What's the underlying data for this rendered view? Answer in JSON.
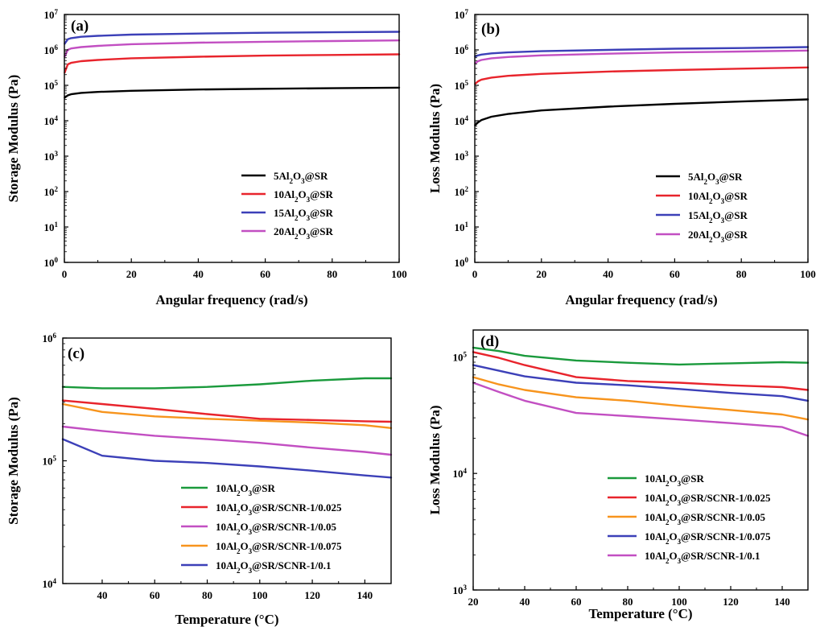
{
  "chart_data": [
    {
      "panel": "(a)",
      "type": "line",
      "xlabel": "Angular frequency (rad/s)",
      "ylabel": "Storage Modulus (Pa)",
      "xlim": [
        0,
        100
      ],
      "ylim": [
        1,
        10000000
      ],
      "yscale": "log",
      "xticks": [
        "0",
        "20",
        "40",
        "60",
        "80",
        "100"
      ],
      "yticks": [
        "10^0",
        "10^1",
        "10^2",
        "10^3",
        "10^4",
        "10^5",
        "10^6",
        "10^7"
      ],
      "legend_position": "lower-right",
      "x": [
        0.1,
        1,
        2,
        5,
        10,
        20,
        40,
        60,
        80,
        100
      ],
      "series": [
        {
          "name": "5Al2O3@SR",
          "color": "#000000",
          "values": [
            45000,
            52000,
            56000,
            61000,
            65000,
            70000,
            76000,
            80000,
            83000,
            86000
          ]
        },
        {
          "name": "10Al2O3@SR",
          "color": "#e8242c",
          "values": [
            230000,
            390000,
            430000,
            480000,
            520000,
            580000,
            640000,
            690000,
            720000,
            750000
          ]
        },
        {
          "name": "15Al2O3@SR",
          "color": "#3c40b8",
          "values": [
            1500000,
            2000000,
            2150000,
            2350000,
            2500000,
            2700000,
            2900000,
            3050000,
            3150000,
            3250000
          ]
        },
        {
          "name": "20Al2O3@SR",
          "color": "#c24fc2",
          "values": [
            650000,
            1000000,
            1100000,
            1200000,
            1300000,
            1450000,
            1600000,
            1700000,
            1780000,
            1850000
          ]
        }
      ]
    },
    {
      "panel": "(b)",
      "type": "line",
      "xlabel": "Angular frequency (rad/s)",
      "ylabel": "Loss Modulus (Pa)",
      "xlim": [
        0,
        100
      ],
      "ylim": [
        1,
        10000000
      ],
      "yscale": "log",
      "xticks": [
        "0",
        "20",
        "40",
        "60",
        "80",
        "100"
      ],
      "yticks": [
        "10^0",
        "10^1",
        "10^2",
        "10^3",
        "10^4",
        "10^5",
        "10^6",
        "10^7"
      ],
      "legend_position": "lower-right",
      "x": [
        0.1,
        1,
        2,
        5,
        10,
        20,
        40,
        60,
        80,
        100
      ],
      "series": [
        {
          "name": "5Al2O3@SR",
          "color": "#000000",
          "values": [
            7500,
            9000,
            10500,
            13000,
            15500,
            19500,
            25000,
            30000,
            35000,
            40000
          ]
        },
        {
          "name": "10Al2O3@SR",
          "color": "#e8242c",
          "values": [
            110000,
            130000,
            145000,
            165000,
            185000,
            210000,
            245000,
            270000,
            295000,
            320000
          ]
        },
        {
          "name": "15Al2O3@SR",
          "color": "#3c40b8",
          "values": [
            650000,
            700000,
            740000,
            800000,
            850000,
            920000,
            1000000,
            1080000,
            1130000,
            1200000
          ]
        },
        {
          "name": "20Al2O3@SR",
          "color": "#c24fc2",
          "values": [
            420000,
            480000,
            520000,
            580000,
            630000,
            700000,
            780000,
            850000,
            900000,
            960000
          ]
        }
      ]
    },
    {
      "panel": "(c)",
      "type": "line",
      "xlabel": "Temperature (°C)",
      "ylabel": "Storage Modulus (Pa)",
      "xlim": [
        25,
        150
      ],
      "ylim": [
        10000,
        1000000
      ],
      "yscale": "log",
      "xticks": [
        "40",
        "60",
        "80",
        "100",
        "120",
        "140"
      ],
      "yticks": [
        "10^4",
        "10^5",
        "10^6"
      ],
      "legend_position": "lower-center",
      "x": [
        25,
        40,
        60,
        80,
        100,
        120,
        140,
        150
      ],
      "series": [
        {
          "name": "10Al2O3@SR",
          "color": "#1a9a3c",
          "values": [
            400000,
            390000,
            390000,
            400000,
            420000,
            450000,
            470000,
            470000
          ]
        },
        {
          "name": "10Al2O3@SR/SCNR-1/0.025",
          "color": "#e8242c",
          "values": [
            310000,
            290000,
            265000,
            240000,
            220000,
            215000,
            210000,
            208000
          ]
        },
        {
          "name": "10Al2O3@SR/SCNR-1/0.05",
          "color": "#c24fc2",
          "values": [
            190000,
            175000,
            160000,
            150000,
            140000,
            128000,
            118000,
            112000
          ]
        },
        {
          "name": "10Al2O3@SR/SCNR-1/0.075",
          "color": "#f7941d",
          "values": [
            290000,
            250000,
            230000,
            220000,
            212000,
            205000,
            195000,
            185000
          ]
        },
        {
          "name": "10Al2O3@SR/SCNR-1/0.1",
          "color": "#3c40b8",
          "values": [
            150000,
            110000,
            100000,
            96000,
            90000,
            83000,
            76000,
            73000
          ]
        }
      ]
    },
    {
      "panel": "(d)",
      "type": "line",
      "xlabel": "Temperature (°C)",
      "ylabel": "Loss Modulus (Pa)",
      "xlim": [
        20,
        150
      ],
      "ylim": [
        1000,
        170000
      ],
      "yscale": "log",
      "xticks": [
        "20",
        "40",
        "60",
        "80",
        "100",
        "120",
        "140"
      ],
      "yticks": [
        "10^3",
        "10^4",
        "10^5"
      ],
      "legend_position": "lower-right",
      "x": [
        20,
        30,
        40,
        60,
        80,
        100,
        120,
        140,
        150
      ],
      "series": [
        {
          "name": "10Al2O3@SR",
          "color": "#1a9a3c",
          "values": [
            120000,
            112000,
            102000,
            93000,
            89000,
            86000,
            88000,
            90000,
            89000
          ]
        },
        {
          "name": "10Al2O3@SR/SCNR-1/0.025",
          "color": "#e8242c",
          "values": [
            110000,
            98000,
            85000,
            67000,
            62000,
            60000,
            57000,
            55000,
            52000
          ]
        },
        {
          "name": "10Al2O3@SR/SCNR-1/0.05",
          "color": "#f7941d",
          "values": [
            67000,
            58000,
            52000,
            45000,
            42000,
            38000,
            35000,
            32000,
            29000
          ]
        },
        {
          "name": "10Al2O3@SR/SCNR-1/0.075",
          "color": "#3c40b8",
          "values": [
            85000,
            76000,
            68000,
            60000,
            57000,
            53000,
            49000,
            46000,
            42000
          ]
        },
        {
          "name": "10Al2O3@SR/SCNR-1/0.1",
          "color": "#c24fc2",
          "values": [
            60000,
            50000,
            42000,
            33000,
            31000,
            29000,
            27000,
            25000,
            21000
          ]
        }
      ]
    }
  ]
}
